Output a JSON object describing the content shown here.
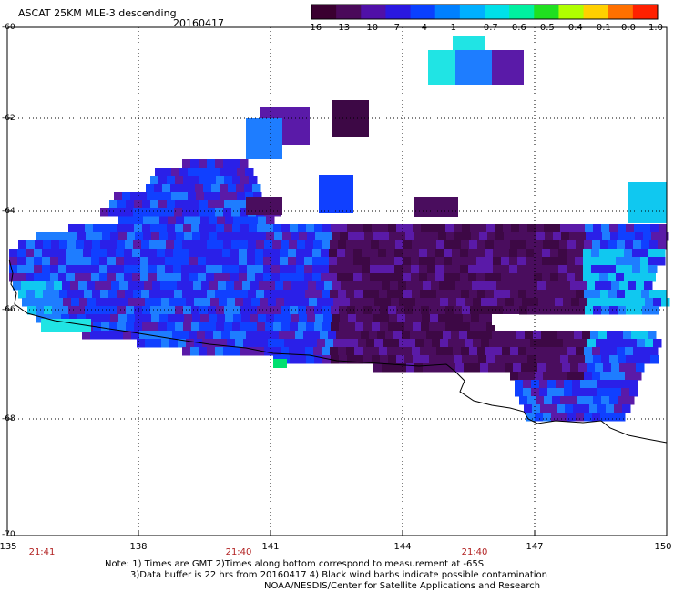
{
  "header": {
    "title": "ASCAT 25KM MLE-3 descending",
    "date": "20160417"
  },
  "colorbar": {
    "labels": [
      "-16",
      "-13",
      "-10",
      "-7",
      "-4",
      "-1",
      "-0.7",
      "-0.6",
      "-0.5",
      "-0.4",
      "-0.1",
      "0.0",
      "1.0"
    ],
    "colors": [
      "#3a0030",
      "#4a0a5a",
      "#5010a8",
      "#2a18e0",
      "#0a40ff",
      "#0080ff",
      "#00b0ff",
      "#00e0e8",
      "#00f0a0",
      "#20e020",
      "#b0ff00",
      "#ffd000",
      "#ff7000",
      "#ff2000"
    ]
  },
  "axes": {
    "lat_labels": [
      "-60",
      "-62",
      "-64",
      "-66",
      "-68",
      "-70"
    ],
    "lon_labels": [
      "135",
      "138",
      "141",
      "144",
      "147",
      "150"
    ],
    "time_labels": [
      "21:41",
      "21:40",
      "21:40"
    ]
  },
  "notes": {
    "line1": "Note: 1) Times are GMT 2)Times along bottom correspond to measurement at -65S",
    "line2": "3)Data buffer is 22 hrs from 20160417 4) Black wind barbs indicate possible contamination",
    "line3": "NOAA/NESDIS/Center for Satellite Applications and Research"
  }
}
